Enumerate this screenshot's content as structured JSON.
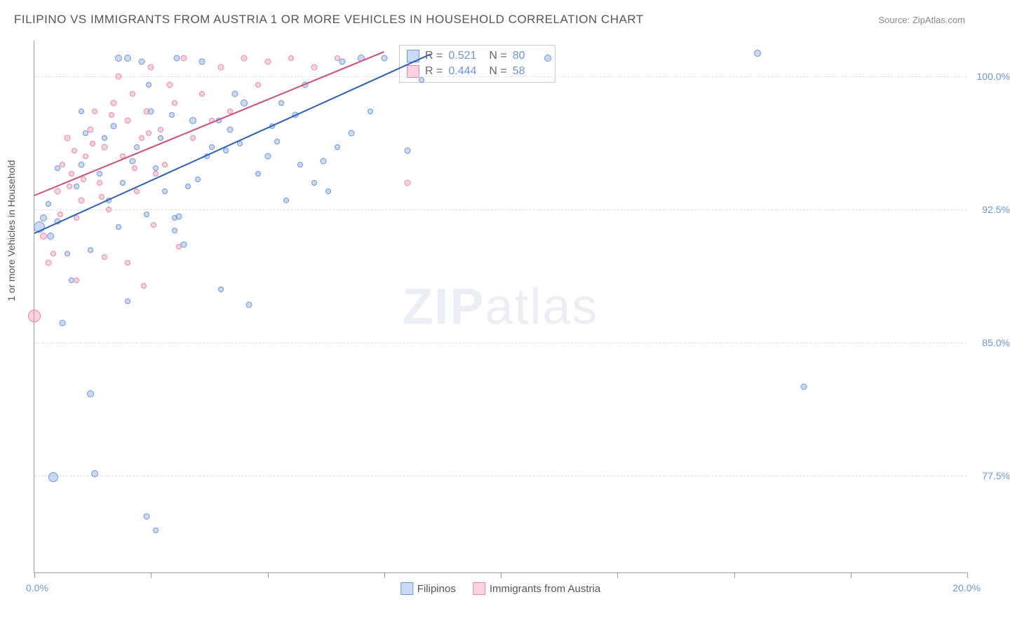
{
  "title": "FILIPINO VS IMMIGRANTS FROM AUSTRIA 1 OR MORE VEHICLES IN HOUSEHOLD CORRELATION CHART",
  "source": "Source: ZipAtlas.com",
  "ylabel": "1 or more Vehicles in Household",
  "watermark_bold": "ZIP",
  "watermark_light": "atlas",
  "chart": {
    "type": "scatter",
    "xlim": [
      0,
      20
    ],
    "ylim": [
      72,
      102
    ],
    "xticks": [
      0,
      2.5,
      5,
      7.5,
      10,
      12.5,
      15,
      17.5,
      20
    ],
    "xlabels": {
      "0": "0.0%",
      "20": "20.0%"
    },
    "yticks": [
      77.5,
      85.0,
      92.5,
      100.0
    ],
    "ylabels": [
      "77.5%",
      "85.0%",
      "92.5%",
      "100.0%"
    ],
    "grid_color": "#dddddd",
    "axis_color": "#999999",
    "tick_label_color": "#6b95e0",
    "series": [
      {
        "name": "Filipinos",
        "color_fill": "rgba(107,149,224,0.35)",
        "color_stroke": "#6b95e0",
        "trend_color": "#2b5fc1",
        "r": 0.521,
        "n": 80,
        "trend": {
          "x1": 0,
          "y1": 91.2,
          "x2": 8.5,
          "y2": 101.3
        },
        "points": [
          [
            0.1,
            91.5,
            16
          ],
          [
            0.2,
            92.0,
            10
          ],
          [
            0.3,
            92.8,
            8
          ],
          [
            0.4,
            77.4,
            14
          ],
          [
            1.3,
            77.6,
            10
          ],
          [
            0.6,
            86.1,
            9
          ],
          [
            1.2,
            82.1,
            10
          ],
          [
            2.4,
            75.2,
            9
          ],
          [
            2.6,
            74.4,
            8
          ],
          [
            2.0,
            87.3,
            8
          ],
          [
            0.9,
            93.8,
            8
          ],
          [
            1.0,
            95.0,
            9
          ],
          [
            1.5,
            96.5,
            8
          ],
          [
            1.7,
            97.2,
            9
          ],
          [
            1.8,
            101.0,
            10
          ],
          [
            2.0,
            101.0,
            10
          ],
          [
            2.3,
            100.8,
            9
          ],
          [
            2.5,
            98.0,
            9
          ],
          [
            2.7,
            96.5,
            8
          ],
          [
            3.0,
            92.0,
            8
          ],
          [
            3.0,
            91.3,
            8
          ],
          [
            3.2,
            90.5,
            9
          ],
          [
            3.4,
            97.5,
            10
          ],
          [
            3.6,
            100.8,
            9
          ],
          [
            3.8,
            96.0,
            8
          ],
          [
            4.0,
            88.0,
            8
          ],
          [
            4.2,
            97.0,
            9
          ],
          [
            4.5,
            98.5,
            10
          ],
          [
            4.8,
            94.5,
            8
          ],
          [
            5.0,
            95.5,
            9
          ],
          [
            5.2,
            96.3,
            8
          ],
          [
            5.4,
            93.0,
            8
          ],
          [
            5.6,
            97.8,
            9
          ],
          [
            5.8,
            99.5,
            9
          ],
          [
            6.0,
            94.0,
            8
          ],
          [
            6.2,
            95.2,
            9
          ],
          [
            6.5,
            96.0,
            8
          ],
          [
            6.8,
            96.8,
            9
          ],
          [
            7.0,
            101.0,
            10
          ],
          [
            7.2,
            98.0,
            8
          ],
          [
            7.5,
            101.0,
            9
          ],
          [
            3.1,
            92.1,
            9
          ],
          [
            2.4,
            92.2,
            8
          ],
          [
            4.6,
            87.1,
            9
          ],
          [
            1.8,
            91.5,
            8
          ],
          [
            1.2,
            90.2,
            8
          ],
          [
            0.7,
            90.0,
            8
          ],
          [
            0.5,
            94.8,
            8
          ],
          [
            2.1,
            95.2,
            9
          ],
          [
            2.8,
            93.5,
            8
          ],
          [
            3.5,
            94.2,
            8
          ],
          [
            4.3,
            99.0,
            9
          ],
          [
            5.3,
            98.5,
            8
          ],
          [
            6.3,
            93.5,
            8
          ],
          [
            8.0,
            95.8,
            9
          ],
          [
            8.3,
            99.8,
            8
          ],
          [
            11.0,
            101.0,
            10
          ],
          [
            15.5,
            101.3,
            10
          ],
          [
            16.5,
            82.5,
            9
          ],
          [
            1.6,
            93.0,
            8
          ],
          [
            0.8,
            88.5,
            8
          ],
          [
            2.2,
            96.0,
            8
          ],
          [
            3.7,
            95.5,
            8
          ],
          [
            4.4,
            96.2,
            8
          ],
          [
            5.7,
            95.0,
            8
          ],
          [
            6.6,
            100.8,
            9
          ],
          [
            1.4,
            94.5,
            8
          ],
          [
            2.6,
            94.8,
            8
          ],
          [
            3.3,
            93.8,
            8
          ],
          [
            0.35,
            91.0,
            10
          ],
          [
            0.5,
            91.8,
            9
          ],
          [
            1.1,
            96.8,
            8
          ],
          [
            1.9,
            94.0,
            8
          ],
          [
            2.95,
            97.8,
            8
          ],
          [
            3.95,
            97.5,
            8
          ],
          [
            4.1,
            95.8,
            8
          ],
          [
            5.1,
            97.2,
            8
          ],
          [
            1.0,
            98.0,
            8
          ],
          [
            3.05,
            101.0,
            9
          ],
          [
            2.45,
            99.5,
            8
          ]
        ]
      },
      {
        "name": "Immigrants from Austria",
        "color_fill": "rgba(240,130,160,0.35)",
        "color_stroke": "#e888a8",
        "trend_color": "#d04d7a",
        "r": 0.444,
        "n": 58,
        "trend": {
          "x1": 0,
          "y1": 93.3,
          "x2": 7.5,
          "y2": 101.4
        },
        "points": [
          [
            0.0,
            86.5,
            18
          ],
          [
            0.2,
            91.0,
            10
          ],
          [
            0.3,
            89.5,
            9
          ],
          [
            0.5,
            93.5,
            9
          ],
          [
            0.6,
            95.0,
            8
          ],
          [
            0.7,
            96.5,
            9
          ],
          [
            0.8,
            94.5,
            8
          ],
          [
            0.9,
            92.0,
            8
          ],
          [
            1.0,
            93.0,
            9
          ],
          [
            1.1,
            95.5,
            8
          ],
          [
            1.2,
            97.0,
            9
          ],
          [
            1.3,
            98.0,
            8
          ],
          [
            1.4,
            94.0,
            8
          ],
          [
            1.5,
            96.0,
            9
          ],
          [
            1.6,
            92.5,
            8
          ],
          [
            1.7,
            98.5,
            9
          ],
          [
            1.8,
            100.0,
            9
          ],
          [
            1.9,
            95.5,
            8
          ],
          [
            2.0,
            97.5,
            9
          ],
          [
            2.1,
            99.0,
            8
          ],
          [
            2.2,
            93.5,
            8
          ],
          [
            2.3,
            96.5,
            8
          ],
          [
            2.4,
            98.0,
            9
          ],
          [
            2.5,
            100.5,
            9
          ],
          [
            2.6,
            94.5,
            8
          ],
          [
            2.7,
            97.0,
            8
          ],
          [
            2.8,
            95.0,
            8
          ],
          [
            2.9,
            99.5,
            9
          ],
          [
            3.0,
            98.5,
            8
          ],
          [
            3.2,
            101.0,
            9
          ],
          [
            3.4,
            96.5,
            8
          ],
          [
            3.6,
            99.0,
            8
          ],
          [
            3.8,
            97.5,
            8
          ],
          [
            4.0,
            100.5,
            9
          ],
          [
            4.2,
            98.0,
            8
          ],
          [
            4.5,
            101.0,
            9
          ],
          [
            4.8,
            99.5,
            8
          ],
          [
            5.0,
            100.8,
            9
          ],
          [
            5.5,
            101.0,
            8
          ],
          [
            6.0,
            100.5,
            9
          ],
          [
            6.5,
            101.0,
            8
          ],
          [
            0.4,
            90.0,
            8
          ],
          [
            0.55,
            92.2,
            8
          ],
          [
            0.75,
            93.8,
            8
          ],
          [
            0.85,
            95.8,
            8
          ],
          [
            1.05,
            94.2,
            8
          ],
          [
            1.25,
            96.2,
            8
          ],
          [
            1.45,
            93.2,
            8
          ],
          [
            1.65,
            97.8,
            8
          ],
          [
            2.15,
            94.8,
            8
          ],
          [
            2.45,
            96.8,
            8
          ],
          [
            2.55,
            91.6,
            8
          ],
          [
            2.0,
            89.5,
            8
          ],
          [
            1.5,
            89.8,
            8
          ],
          [
            0.9,
            88.5,
            8
          ],
          [
            2.35,
            88.2,
            8
          ],
          [
            8.0,
            94.0,
            9
          ],
          [
            3.1,
            90.4,
            8
          ]
        ]
      }
    ]
  },
  "legend": {
    "series1": "Filipinos",
    "series2": "Immigrants from Austria"
  },
  "stats_labels": {
    "r": "R =",
    "n": "N ="
  }
}
